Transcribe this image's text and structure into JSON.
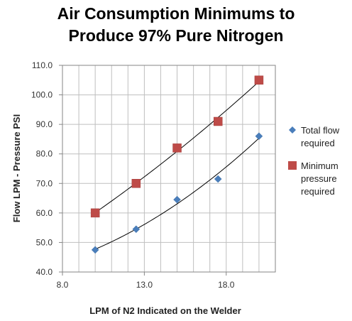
{
  "chart_data": {
    "type": "scatter",
    "title_lines": [
      "Air Consumption Minimums to",
      "Produce 97% Pure Nitrogen"
    ],
    "xlabel": "LPM of N2  Indicated on the Welder",
    "ylabel": "Flow LPM - Pressure PSI",
    "xlim": [
      8.0,
      21.0
    ],
    "ylim": [
      40.0,
      110.0
    ],
    "x_ticks": [
      "8.0",
      "13.0",
      "18.0"
    ],
    "y_ticks": [
      "40.0",
      "50.0",
      "60.0",
      "70.0",
      "80.0",
      "90.0",
      "100.0",
      "110.0"
    ],
    "grid": true,
    "legend_position": "right",
    "series": [
      {
        "name_lines": [
          "Total flow",
          "required"
        ],
        "marker": "diamond",
        "color": "#4a7ebb",
        "trendline": "polynomial",
        "x": [
          10,
          12.5,
          15,
          17.5,
          20
        ],
        "y": [
          47.5,
          54.5,
          64.5,
          71.5,
          86
        ]
      },
      {
        "name_lines": [
          "Minimum",
          "pressure",
          "required"
        ],
        "marker": "square",
        "color": "#be4b48",
        "trendline": "polynomial",
        "x": [
          10,
          12.5,
          15,
          17.5,
          20
        ],
        "y": [
          60,
          70,
          82,
          91,
          105
        ]
      }
    ]
  }
}
